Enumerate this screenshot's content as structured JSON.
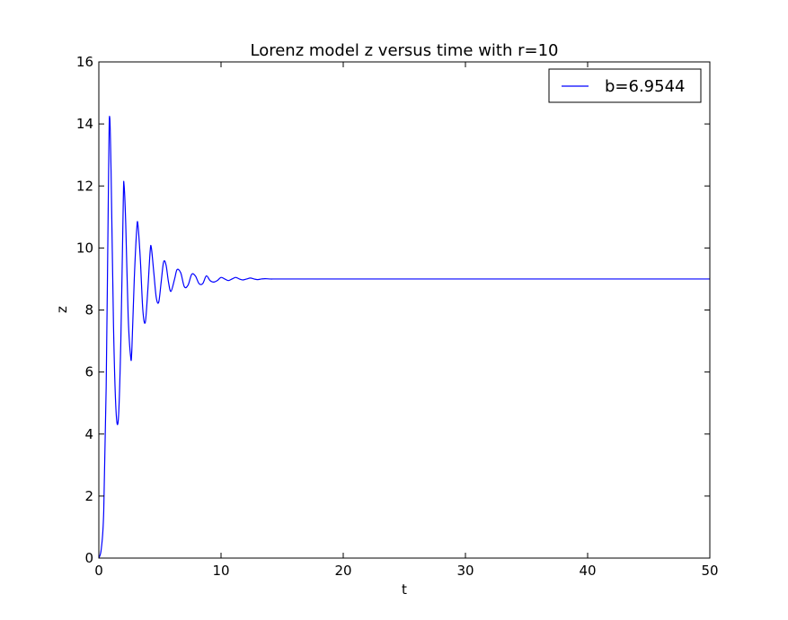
{
  "chart_data": {
    "type": "line",
    "title": "Lorenz model z versus time with r=10",
    "xlabel": "t",
    "ylabel": "z",
    "xlim": [
      0,
      50
    ],
    "ylim": [
      0,
      16
    ],
    "xticks": [
      0,
      10,
      20,
      30,
      40,
      50
    ],
    "yticks": [
      0,
      2,
      4,
      6,
      8,
      10,
      12,
      14,
      16
    ],
    "xtick_labels": [
      "0",
      "10",
      "20",
      "30",
      "40",
      "50"
    ],
    "ytick_labels": [
      "0",
      "2",
      "4",
      "6",
      "8",
      "10",
      "12",
      "14",
      "16"
    ],
    "grid": false,
    "legend_position": "top-right",
    "series": [
      {
        "name": "b=6.9544",
        "color": "#0000ff",
        "x": [
          0,
          0.2,
          0.4,
          0.6,
          0.8,
          0.88,
          1.0,
          1.2,
          1.4,
          1.6,
          1.8,
          2.0,
          2.06,
          2.2,
          2.4,
          2.6,
          2.7,
          2.9,
          3.1,
          3.2,
          3.4,
          3.6,
          3.8,
          4.0,
          4.2,
          4.3,
          4.5,
          4.7,
          4.9,
          5.1,
          5.3,
          5.5,
          5.7,
          5.9,
          6.2,
          6.4,
          6.7,
          7.0,
          7.3,
          7.6,
          7.9,
          8.2,
          8.5,
          8.8,
          9.1,
          9.4,
          9.7,
          10.0,
          10.3,
          10.6,
          10.9,
          11.2,
          11.5,
          11.8,
          12.1,
          12.4,
          12.7,
          13.0,
          13.3,
          13.6,
          14.0,
          15.0,
          20.0,
          30.0,
          40.0,
          50.0
        ],
        "y": [
          0,
          0.3,
          1.5,
          5.5,
          12.5,
          14.25,
          12.5,
          7.5,
          4.8,
          4.5,
          7.0,
          11.5,
          12.05,
          10.8,
          7.8,
          6.5,
          6.7,
          9.0,
          10.6,
          10.75,
          9.6,
          8.0,
          7.6,
          8.6,
          9.9,
          10.0,
          9.2,
          8.4,
          8.25,
          8.9,
          9.55,
          9.45,
          8.9,
          8.6,
          9.0,
          9.3,
          9.2,
          8.75,
          8.8,
          9.15,
          9.1,
          8.85,
          8.85,
          9.1,
          8.95,
          8.9,
          8.95,
          9.05,
          9.0,
          8.95,
          9.0,
          9.05,
          9.0,
          8.97,
          9.0,
          9.03,
          9.0,
          8.98,
          9.0,
          9.01,
          9.0,
          9.0,
          9.0,
          9.0,
          9.0,
          9.0
        ]
      }
    ]
  }
}
